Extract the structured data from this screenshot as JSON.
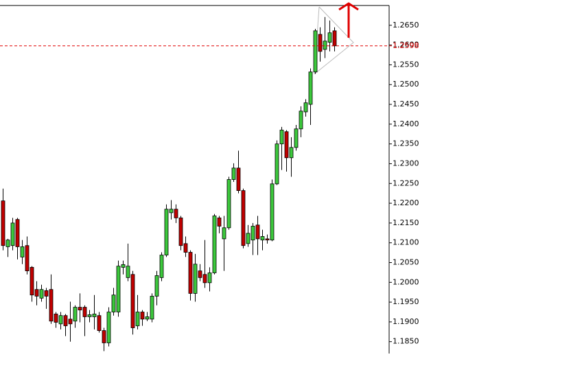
{
  "chart_data": {
    "type": "candlestick",
    "open": [
      1.2206,
      1.209,
      1.2093,
      1.2159,
      1.2064,
      1.2093,
      1.2038,
      1.1982,
      1.196,
      1.1979,
      1.1982,
      1.192,
      1.1895,
      1.1916,
      1.1907,
      1.1902,
      1.1937,
      1.1937,
      1.1913,
      1.1913,
      1.1916,
      1.1878,
      1.1847,
      1.1925,
      1.1925,
      1.2038,
      1.2012,
      1.202,
      1.189,
      1.1925,
      1.1907,
      1.1907,
      1.1965,
      1.2012,
      1.2069,
      1.2176,
      1.2185,
      1.2163,
      1.2098,
      1.2076,
      1.1972,
      1.2029,
      1.202,
      1.1999,
      1.2024,
      1.2163,
      1.211,
      1.2138,
      1.226,
      1.2289,
      1.2232,
      1.2098,
      1.2107,
      1.2145,
      1.2107,
      1.211,
      1.2107,
      1.2249,
      1.235,
      1.2381,
      1.2315,
      1.2341,
      1.2388,
      1.2431,
      1.245,
      1.2532,
      1.2627,
      1.2589,
      1.2607,
      1.2636
    ],
    "high": [
      1.2237,
      1.211,
      1.2163,
      1.2163,
      1.2107,
      1.2116,
      1.2041,
      1.2003,
      1.1994,
      1.1986,
      1.202,
      1.1925,
      1.1925,
      1.192,
      1.1951,
      1.1942,
      1.1972,
      1.1942,
      1.193,
      1.1968,
      1.1925,
      1.1885,
      1.1937,
      1.1986,
      1.2055,
      1.2055,
      1.2098,
      1.2029,
      1.1968,
      1.193,
      1.1925,
      1.1972,
      1.2029,
      1.2076,
      1.2197,
      1.2208,
      1.2197,
      1.2168,
      1.2116,
      1.2081,
      1.2072,
      1.2046,
      1.2107,
      1.2038,
      1.2173,
      1.2168,
      1.2168,
      1.2267,
      1.2301,
      1.2333,
      1.2237,
      1.2145,
      1.215,
      1.2168,
      1.2133,
      1.2121,
      1.226,
      1.2359,
      1.2393,
      1.2385,
      1.2367,
      1.2398,
      1.2445,
      1.2463,
      1.2541,
      1.2641,
      1.2645,
      1.2671,
      1.2662,
      1.2645
    ],
    "low": [
      1.2081,
      1.2064,
      1.2081,
      1.2058,
      1.2046,
      1.202,
      1.1951,
      1.1942,
      1.1951,
      1.1933,
      1.1895,
      1.1885,
      1.1881,
      1.1864,
      1.185,
      1.1885,
      1.1899,
      1.1864,
      1.1899,
      1.1881,
      1.1873,
      1.1826,
      1.1838,
      1.1916,
      1.1913,
      1.202,
      1.2003,
      1.1868,
      1.1881,
      1.189,
      1.1902,
      1.1899,
      1.1942,
      1.2003,
      1.2064,
      1.2159,
      1.215,
      1.2081,
      1.2064,
      1.1954,
      1.1951,
      1.2003,
      1.1986,
      1.1977,
      1.202,
      1.2124,
      1.2029,
      1.2133,
      1.2254,
      1.2225,
      1.2086,
      1.209,
      1.2069,
      1.2069,
      1.2081,
      1.2098,
      1.2104,
      1.2246,
      1.2284,
      1.228,
      1.2267,
      1.2333,
      1.2367,
      1.2419,
      1.2398,
      1.2527,
      1.2558,
      1.2567,
      1.2584,
      1.2584
    ],
    "close": [
      1.2093,
      1.2107,
      1.215,
      1.209,
      1.209,
      1.2029,
      1.1968,
      1.1965,
      1.1982,
      1.1965,
      1.1902,
      1.1899,
      1.1916,
      1.189,
      1.1895,
      1.1937,
      1.193,
      1.1913,
      1.1918,
      1.192,
      1.1878,
      1.1847,
      1.1925,
      1.1968,
      1.2041,
      1.2045,
      1.2041,
      1.1885,
      1.1925,
      1.1907,
      1.1913,
      1.1965,
      1.2017,
      1.2069,
      1.2185,
      1.2185,
      1.2163,
      1.2093,
      1.2076,
      1.1972,
      1.2046,
      1.2012,
      1.1999,
      1.2024,
      1.2168,
      1.2142,
      1.2138,
      1.226,
      1.2289,
      1.2232,
      1.2093,
      1.2124,
      1.2142,
      1.211,
      1.2116,
      1.2107,
      1.2249,
      1.235,
      1.2385,
      1.2315,
      1.2341,
      1.2388,
      1.2433,
      1.2454,
      1.2532,
      1.2636,
      1.2584,
      1.261,
      1.2631,
      1.2598
    ],
    "up_color": "#3cc83c",
    "down_color": "#c00000",
    "ylim": [
      1.182,
      1.27
    ],
    "yticks": [
      {
        "value": 1.185,
        "label": "1.1850"
      },
      {
        "value": 1.19,
        "label": "1.1900"
      },
      {
        "value": 1.195,
        "label": "1.1950"
      },
      {
        "value": 1.2,
        "label": "1.2000"
      },
      {
        "value": 1.205,
        "label": "1.2050"
      },
      {
        "value": 1.21,
        "label": "1.2100"
      },
      {
        "value": 1.215,
        "label": "1.2150"
      },
      {
        "value": 1.22,
        "label": "1.2200"
      },
      {
        "value": 1.225,
        "label": "1.2250"
      },
      {
        "value": 1.23,
        "label": "1.2300"
      },
      {
        "value": 1.235,
        "label": "1.2350"
      },
      {
        "value": 1.24,
        "label": "1.2400"
      },
      {
        "value": 1.245,
        "label": "1.2450"
      },
      {
        "value": 1.25,
        "label": "1.2500"
      },
      {
        "value": 1.255,
        "label": "1.2550"
      },
      {
        "value": 1.26,
        "label": "1.2600"
      },
      {
        "value": 1.265,
        "label": "1.2650"
      }
    ],
    "price_line": 1.2598,
    "price_line_color": "#e00000",
    "grid": false
  }
}
